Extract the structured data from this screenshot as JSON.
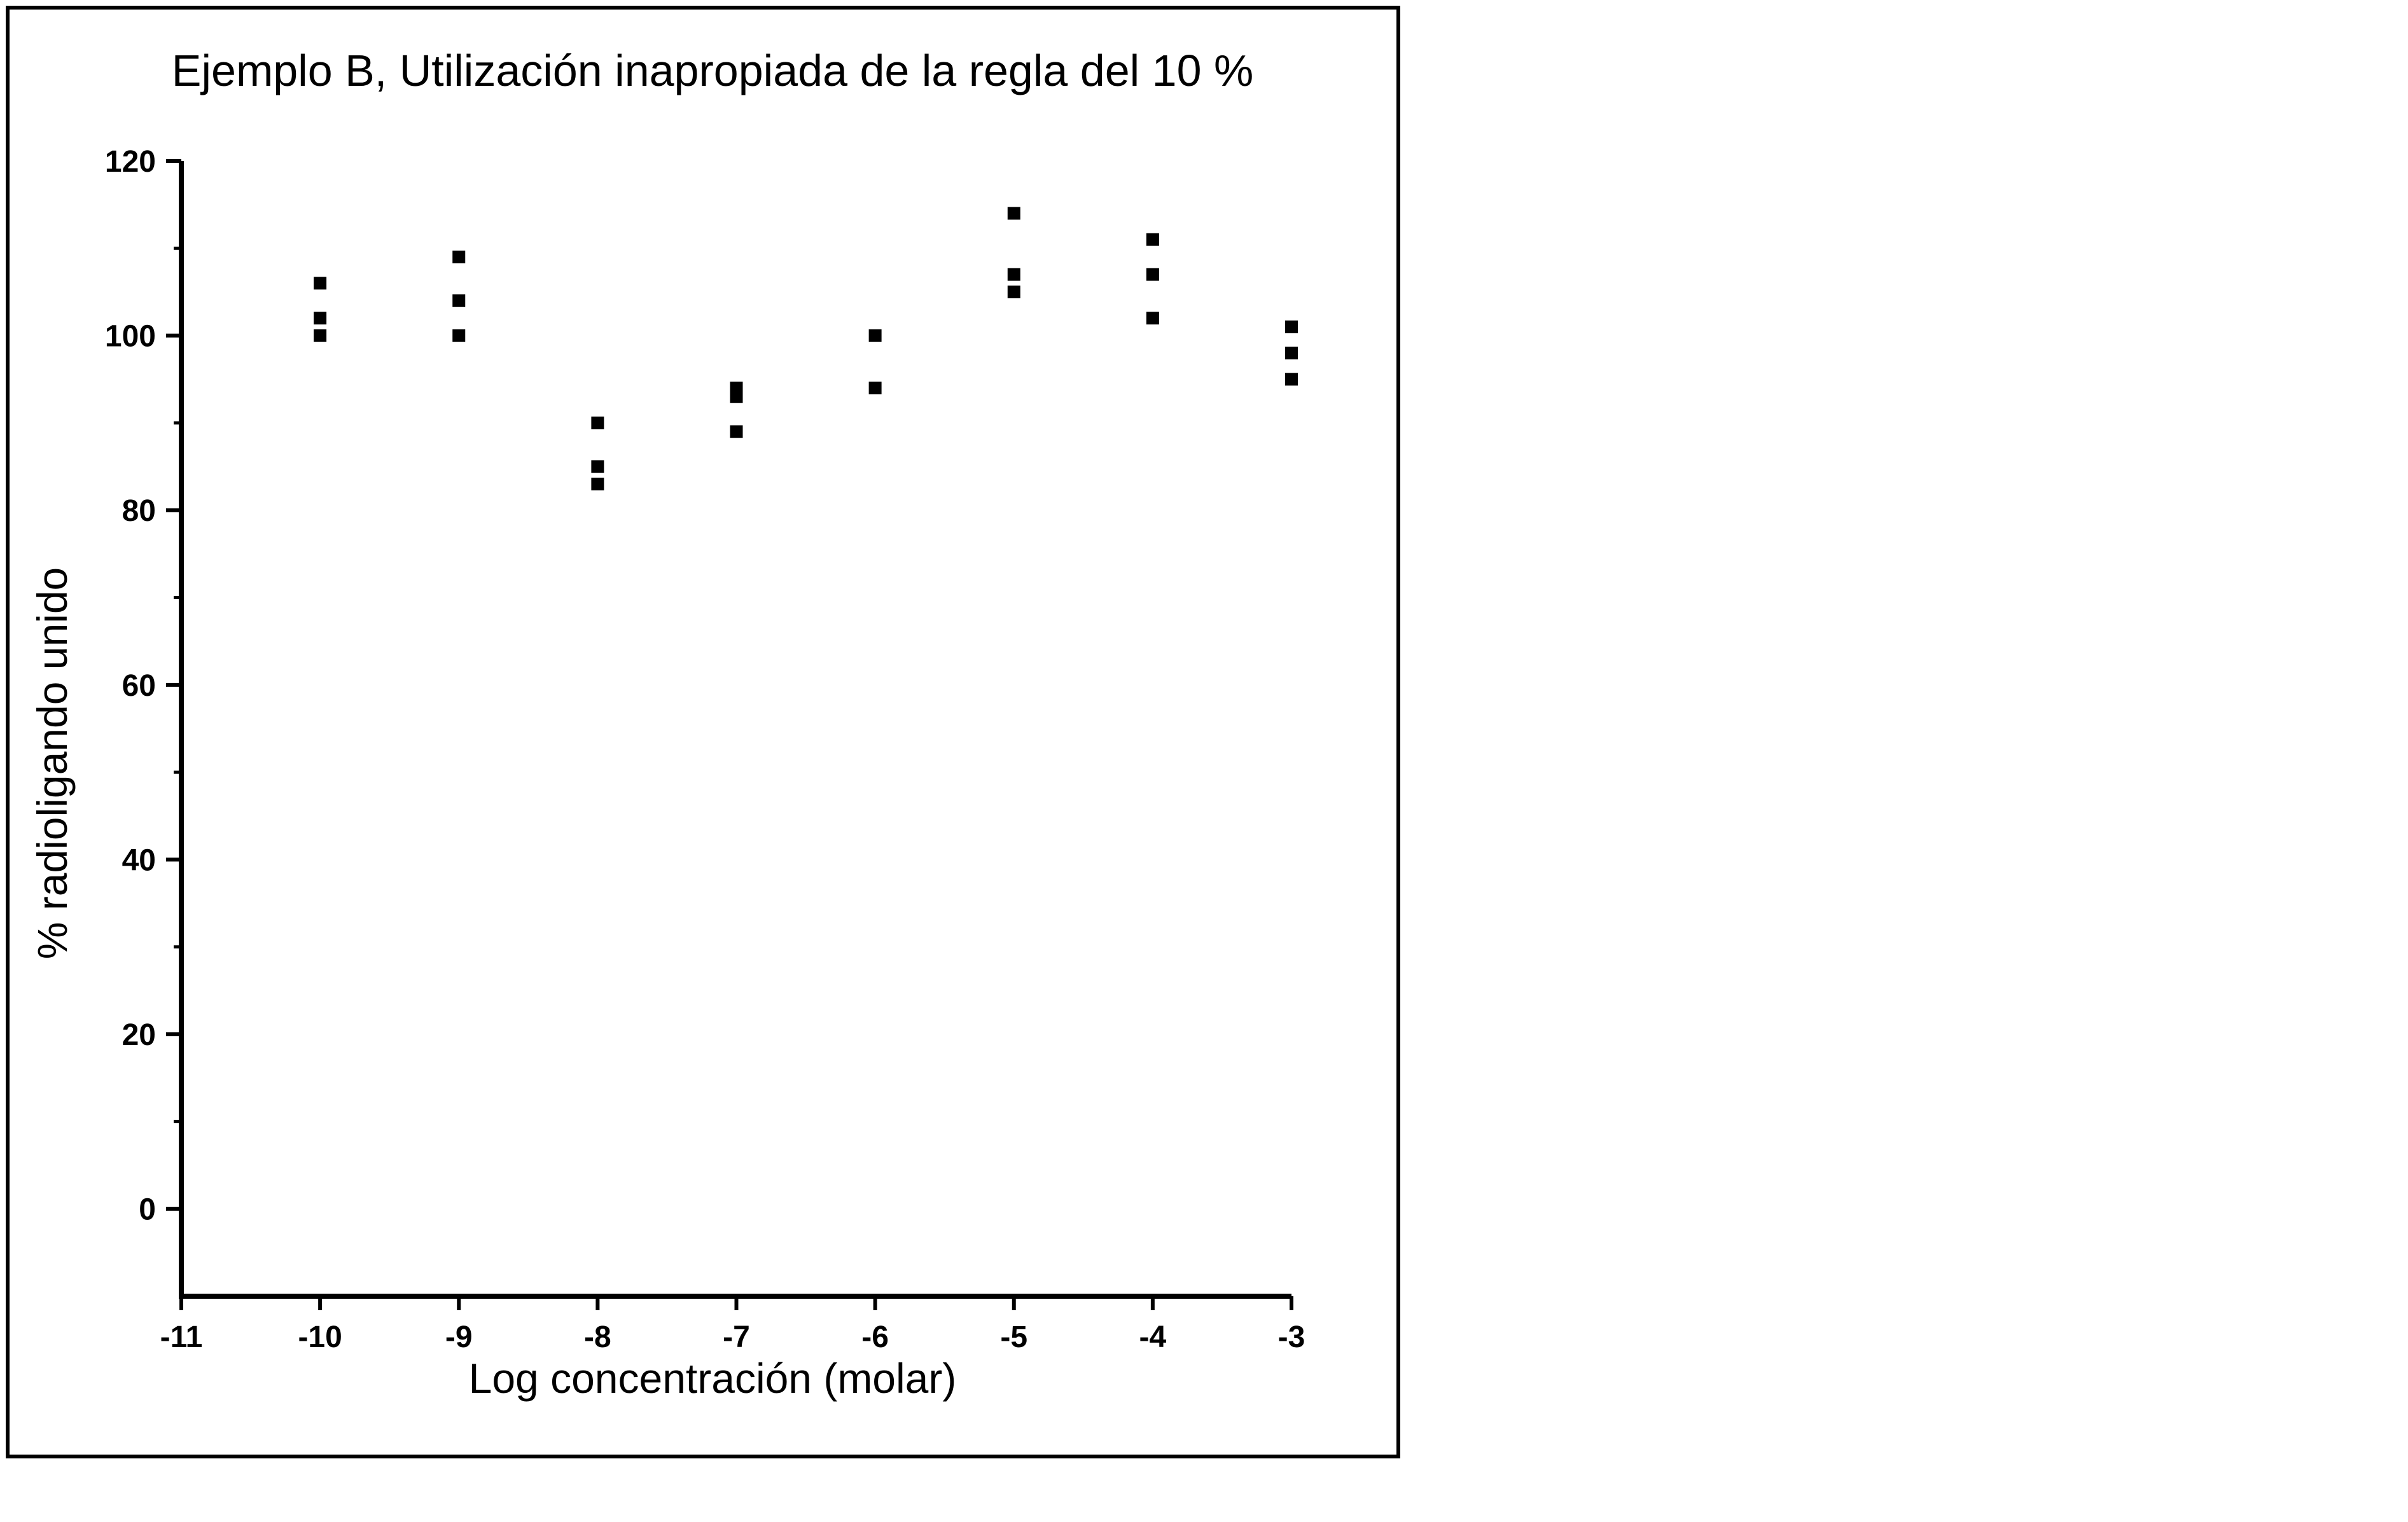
{
  "chart_data": {
    "type": "scatter",
    "title": "Ejemplo B, Utilización inapropiada de la regla del 10 %",
    "xlabel": "Log concentración (molar)",
    "ylabel": "% radioligando unido",
    "xlim": [
      -11,
      -3
    ],
    "ylim": [
      -10,
      120
    ],
    "x_ticks": [
      -11,
      -10,
      -9,
      -8,
      -7,
      -6,
      -5,
      -4,
      -3
    ],
    "x_tick_labels": [
      "-11",
      "-10",
      "-9",
      "-8",
      "-7",
      "-6",
      "-5",
      "-4",
      "-3"
    ],
    "y_ticks": [
      0,
      20,
      40,
      60,
      80,
      100,
      120
    ],
    "y_tick_labels": [
      "0",
      "20",
      "40",
      "60",
      "80",
      "100",
      "120"
    ],
    "y_minor_ticks": [
      10,
      30,
      50,
      70,
      90,
      110
    ],
    "grid": false,
    "marker": "square",
    "marker_color": "#000000",
    "points": [
      {
        "x": -10,
        "y": 106
      },
      {
        "x": -10,
        "y": 102
      },
      {
        "x": -10,
        "y": 100
      },
      {
        "x": -9,
        "y": 109
      },
      {
        "x": -9,
        "y": 104
      },
      {
        "x": -9,
        "y": 100
      },
      {
        "x": -8,
        "y": 90
      },
      {
        "x": -8,
        "y": 85
      },
      {
        "x": -8,
        "y": 83
      },
      {
        "x": -7,
        "y": 94
      },
      {
        "x": -7,
        "y": 93
      },
      {
        "x": -7,
        "y": 89
      },
      {
        "x": -6,
        "y": 100
      },
      {
        "x": -6,
        "y": 94
      },
      {
        "x": -5,
        "y": 114
      },
      {
        "x": -5,
        "y": 107
      },
      {
        "x": -5,
        "y": 105
      },
      {
        "x": -4,
        "y": 111
      },
      {
        "x": -4,
        "y": 107
      },
      {
        "x": -4,
        "y": 102
      },
      {
        "x": -3,
        "y": 101
      },
      {
        "x": -3,
        "y": 98
      },
      {
        "x": -3,
        "y": 95
      }
    ]
  }
}
